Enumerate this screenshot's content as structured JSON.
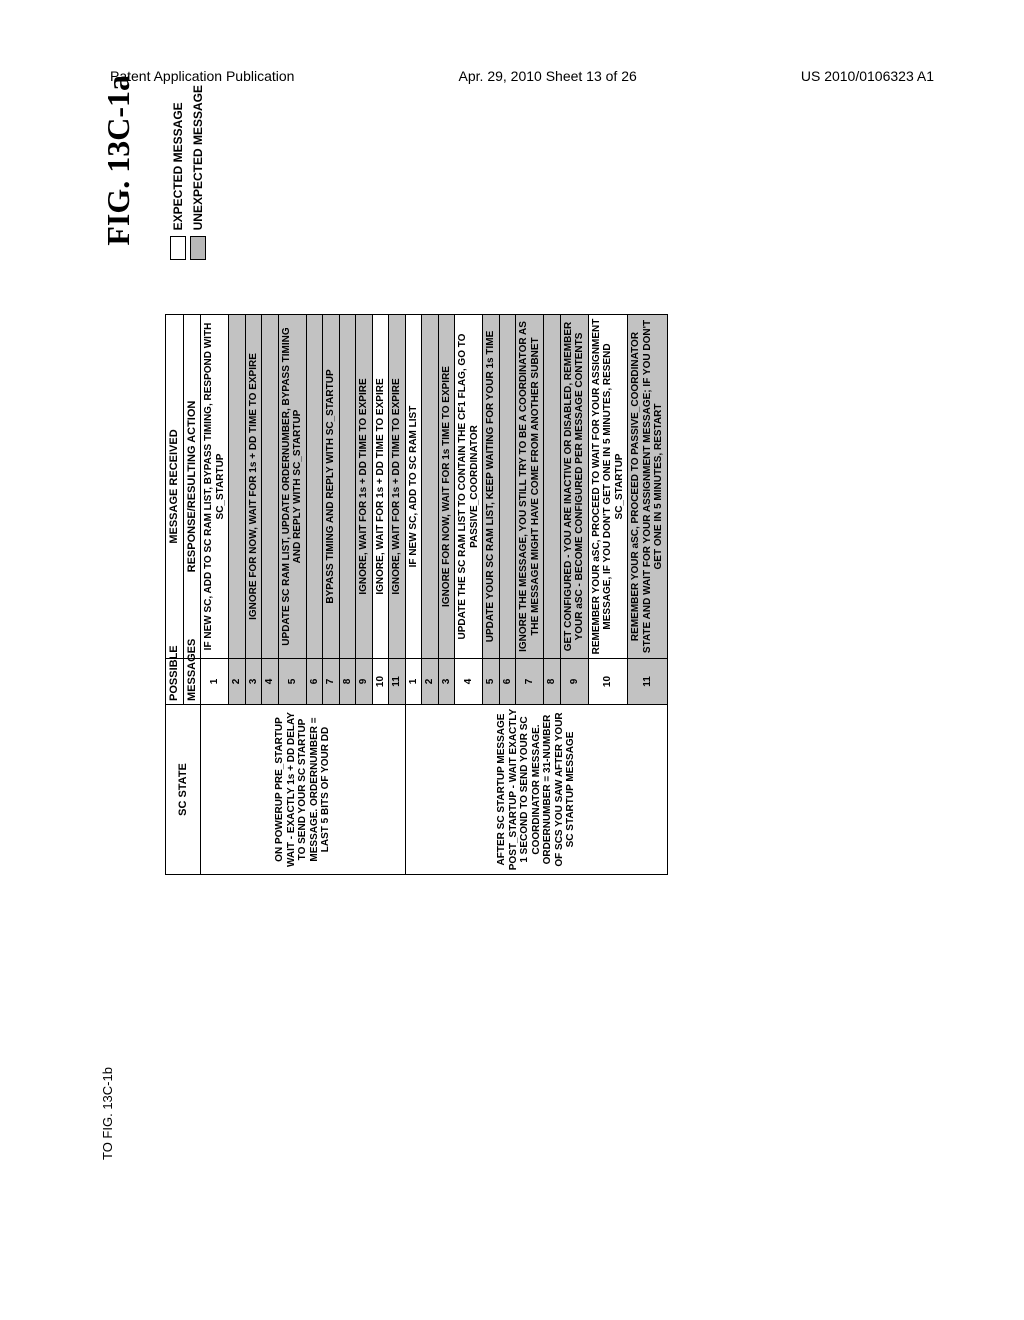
{
  "header": {
    "left": "Patent Application Publication",
    "center": "Apr. 29, 2010  Sheet 13 of 26",
    "right": "US 2010/0106323 A1"
  },
  "figure_label": "FIG. 13C-1a",
  "legend": {
    "expected": "EXPECTED MESSAGE",
    "unexpected": "UNEXPECTED MESSAGE"
  },
  "columns": {
    "state": "SC STATE",
    "messages_top": "POSSIBLE",
    "messages_bot": "MESSAGES",
    "received": "MESSAGE RECEIVED",
    "action": "RESPONSE/RESULTING ACTION"
  },
  "states": [
    {
      "label": "ON POWERUP PRE_STARTUP WAIT - EXACTLY 1s + DD DELAY TO SEND YOUR SC STARTUP MESSAGE.  ORDERNUMBER = LAST 5 BITS OF YOUR DD",
      "rows": [
        {
          "n": "1",
          "u": false,
          "a": "IF NEW SC, ADD TO SC RAM LIST, BYPASS TIMING, RESPOND WITH SC_STARTUP"
        },
        {
          "n": "2",
          "u": true,
          "a": ""
        },
        {
          "n": "3",
          "u": true,
          "a": "IGNORE FOR NOW, WAIT FOR 1s + DD TIME TO EXPIRE"
        },
        {
          "n": "4",
          "u": true,
          "a": ""
        },
        {
          "n": "5",
          "u": true,
          "a": "UPDATE SC RAM LIST, UPDATE ORDERNUMBER, BYPASS TIMING AND REPLY WITH SC_STARTUP"
        },
        {
          "n": "6",
          "u": true,
          "a": ""
        },
        {
          "n": "7",
          "u": true,
          "a": "BYPASS TIMING AND REPLY WITH SC_STARTUP"
        },
        {
          "n": "8",
          "u": true,
          "a": ""
        },
        {
          "n": "9",
          "u": true,
          "a": "IGNORE, WAIT FOR 1s + DD TIME TO EXPIRE"
        },
        {
          "n": "10",
          "u": false,
          "a": "IGNORE, WAIT FOR 1s + DD TIME TO EXPIRE"
        },
        {
          "n": "11",
          "u": true,
          "a": "IGNORE, WAIT FOR 1s + DD TIME TO EXPIRE"
        }
      ]
    },
    {
      "label": "AFTER SC STARTUP MESSAGE POST_STARTUP - WAIT EXACTLY 1 SECOND TO SEND YOUR SC COORDINATOR MESSAGE. ORDERNUMBER = 31-NUMBER OF SCS YOU SAW AFTER YOUR SC STARTUP MESSAGE",
      "rows": [
        {
          "n": "1",
          "u": false,
          "a": "IF NEW SC, ADD TO SC RAM LIST"
        },
        {
          "n": "2",
          "u": true,
          "a": ""
        },
        {
          "n": "3",
          "u": true,
          "a": "IGNORE FOR NOW, WAIT FOR 1s TIME TO EXPIRE"
        },
        {
          "n": "4",
          "u": false,
          "a": "UPDATE THE SC RAM LIST TO CONTAIN THE CF1 FLAG, GO TO PASSIVE_COORDINATOR"
        },
        {
          "n": "5",
          "u": true,
          "a": "UPDATE YOUR SC RAM LIST, KEEP WAITING FOR YOUR 1s TIME"
        },
        {
          "n": "6",
          "u": true,
          "a": ""
        },
        {
          "n": "7",
          "u": true,
          "a": "IGNORE THE MESSAGE, YOU STILL TRY TO BE A COORDINATOR AS THE MESSAGE MIGHT HAVE COME FROM ANOTHER SUBNET"
        },
        {
          "n": "8",
          "u": true,
          "a": ""
        },
        {
          "n": "9",
          "u": true,
          "a": "GET CONFIGURED - YOU ARE INACTIVE OR DISABLED, REMEMBER YOUR aSC - BECOME CONFIGURED PER MESSAGE CONTENTS"
        },
        {
          "n": "10",
          "u": false,
          "a": "REMEMBER YOUR aSC, PROCEED TO WAIT FOR YOUR ASSIGNMENT MESSAGE, IF YOU DON'T GET ONE IN 5 MINUTES, RESEND SC_STARTUP"
        },
        {
          "n": "11",
          "u": true,
          "a": "REMEMBER YOUR aSC, PROCEED TO PASSIVE_COORDINATOR STATE AND WAIT FOR YOUR ASSIGNMENT MESSAGE; IF YOU DON'T GET ONE IN 5 MINUTES, RESTART"
        }
      ]
    }
  ],
  "continuation": "TO FIG. 13C-1b",
  "colors": {
    "unexpected_bg": "#c2c2c2",
    "border": "#000000",
    "background": "#ffffff"
  }
}
